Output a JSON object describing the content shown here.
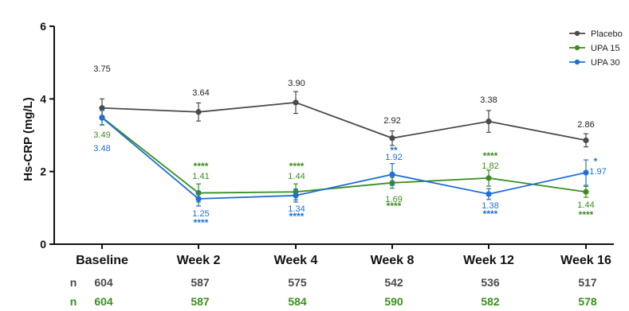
{
  "chart_data": {
    "type": "line",
    "title": "",
    "xlabel": "",
    "ylabel": "Hs-CRP (mg/L)",
    "ylim": [
      0,
      6
    ],
    "yticks": [
      "0",
      "2",
      "4",
      "6"
    ],
    "categories": [
      "Baseline",
      "Week 2",
      "Week 4",
      "Week 8",
      "Week 12",
      "Week 16"
    ],
    "legend_position": "top-right",
    "grid": false,
    "series": [
      {
        "name": "Placebo",
        "color": "#4a4a4a",
        "values": [
          3.75,
          3.64,
          3.9,
          2.92,
          3.38,
          2.86
        ],
        "labels": [
          "3.75",
          "3.64",
          "3.90",
          "2.92",
          "3.38",
          "2.86"
        ],
        "errors": [
          0.25,
          0.25,
          0.3,
          0.2,
          0.3,
          0.18
        ],
        "significance": [
          "",
          "",
          "",
          "",
          "",
          ""
        ],
        "n_label": "n",
        "n": [
          "604",
          "587",
          "575",
          "542",
          "536",
          "517"
        ]
      },
      {
        "name": "UPA 15",
        "color": "#3a8f1e",
        "values": [
          3.49,
          1.41,
          1.44,
          1.69,
          1.82,
          1.44
        ],
        "labels": [
          "3.49",
          "1.41",
          "1.44",
          "1.69",
          "1.82",
          "1.44"
        ],
        "errors": [
          0.2,
          0.25,
          0.22,
          0.15,
          0.22,
          0.15
        ],
        "significance": [
          "",
          "****",
          "****",
          "****",
          "****",
          "****"
        ],
        "n_label": "n",
        "n": [
          "604",
          "587",
          "584",
          "590",
          "582",
          "578"
        ]
      },
      {
        "name": "UPA 30",
        "color": "#1f6fd6",
        "values": [
          3.48,
          1.25,
          1.34,
          1.92,
          1.38,
          1.97
        ],
        "labels": [
          "3.48",
          "1.25",
          "1.34",
          "1.92",
          "1.38",
          "1.97"
        ],
        "errors": [
          0.2,
          0.2,
          0.18,
          0.3,
          0.15,
          0.35
        ],
        "significance": [
          "",
          "****",
          "****",
          "**",
          "****",
          "*"
        ]
      }
    ]
  }
}
